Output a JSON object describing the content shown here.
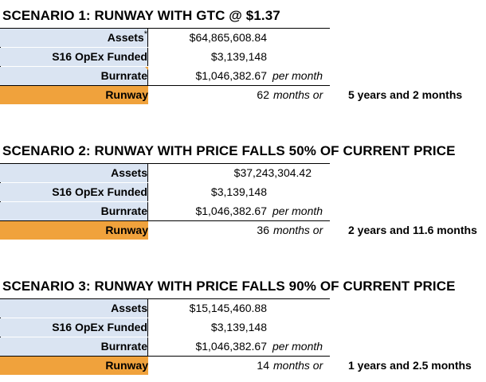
{
  "scenarios": [
    {
      "title": "SCENARIO 1: RUNWAY WITH GTC @ $1.37",
      "assets_label": "Assets",
      "assets_mark": "*",
      "assets_value": "$64,865,608.84",
      "opex_label": "S16 OpEx Funded",
      "opex_value": "$3,139,148",
      "burn_label": "Burnrate",
      "burn_value": "$1,046,382.67",
      "burn_unit": "per month",
      "runway_label": "Runway",
      "runway_months": "62",
      "runway_unit": "months or",
      "runway_years": "5 years and 2 months"
    },
    {
      "title": "SCENARIO 2: RUNWAY WITH PRICE FALLS 50% OF CURRENT PRICE",
      "assets_label": "Assets",
      "assets_value": "$37,243,304.42",
      "opex_label": "S16 OpEx Funded",
      "opex_value": "$3,139,148",
      "burn_label": "Burnrate",
      "burn_value": "$1,046,382.67",
      "burn_unit": "per month",
      "runway_label": "Runway",
      "runway_months": "36",
      "runway_unit": "months or",
      "runway_years": "2 years and 11.6 months"
    },
    {
      "title": "SCENARIO 3: RUNWAY WITH PRICE FALLS 90% OF CURRENT PRICE",
      "assets_label": "Assets",
      "assets_value": "$15,145,460.88",
      "opex_label": "S16 OpEx Funded",
      "opex_value": "$3,139,148",
      "burn_label": "Burnrate",
      "burn_value": "$1,046,382.67",
      "burn_unit": "per month",
      "runway_label": "Runway",
      "runway_months": "14",
      "runway_unit": "months or",
      "runway_years": "1 years and 2.5 months"
    }
  ],
  "colors": {
    "label_fill": "#dae4f2",
    "runway_fill": "#f0a23c"
  }
}
